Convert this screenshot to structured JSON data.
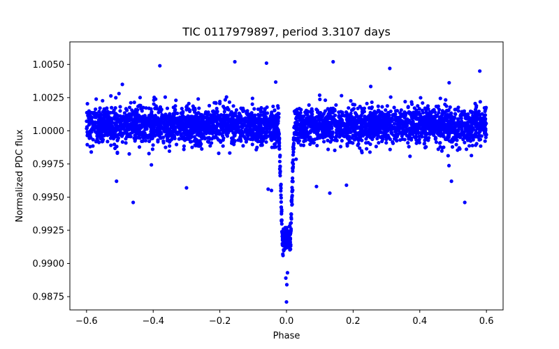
{
  "chart_data": {
    "type": "scatter",
    "title": "TIC 0117979897, period 3.3107 days",
    "xlabel": "Phase",
    "ylabel": "Normalized PDC flux",
    "xlim": [
      -0.65,
      0.65
    ],
    "ylim": [
      0.9865,
      1.0067
    ],
    "grid": false,
    "marker_color": "#0000ff",
    "x_ticks": [
      -0.6,
      -0.4,
      -0.2,
      0.0,
      0.2,
      0.4,
      0.6
    ],
    "x_tick_labels": [
      "−0.6",
      "−0.4",
      "−0.2",
      "0.0",
      "0.2",
      "0.4",
      "0.6"
    ],
    "y_ticks": [
      0.9875,
      0.99,
      0.9925,
      0.995,
      0.9975,
      1.0,
      1.0025,
      1.005
    ],
    "y_tick_labels": [
      "0.9875",
      "0.9900",
      "0.9925",
      "0.9950",
      "0.9975",
      "1.0000",
      "1.0025",
      "1.0050"
    ],
    "transit": {
      "center_phase": 0.0,
      "depth": 0.0085,
      "full_width_phase": 0.046
    },
    "baseline": {
      "flux": 1.0004,
      "scatter": 0.0012,
      "phase_range": [
        -0.6,
        0.6
      ]
    },
    "points": [
      {
        "x": -0.46,
        "y": 0.9946
      },
      {
        "x": -0.51,
        "y": 0.9962
      },
      {
        "x": -0.3,
        "y": 0.9957
      },
      {
        "x": 0.535,
        "y": 0.9946
      },
      {
        "x": 0.495,
        "y": 0.9962
      },
      {
        "x": 0.13,
        "y": 0.9953
      },
      {
        "x": 0.09,
        "y": 0.9958
      },
      {
        "x": 0.18,
        "y": 0.9959
      },
      {
        "x": -0.155,
        "y": 1.0052
      },
      {
        "x": 0.14,
        "y": 1.0052
      },
      {
        "x": -0.06,
        "y": 1.0051
      },
      {
        "x": -0.38,
        "y": 1.0049
      },
      {
        "x": 0.31,
        "y": 1.0047
      },
      {
        "x": 0.58,
        "y": 1.0045
      },
      {
        "x": -0.055,
        "y": 0.9956
      },
      {
        "x": -0.045,
        "y": 0.9955
      },
      {
        "x": 0.0,
        "y": 0.9871
      },
      {
        "x": 0.001,
        "y": 0.9884
      },
      {
        "x": -0.002,
        "y": 0.9889
      },
      {
        "x": 0.003,
        "y": 0.9893
      }
    ],
    "seed": 117979897,
    "n_baseline": 3600,
    "n_transit": 190
  }
}
